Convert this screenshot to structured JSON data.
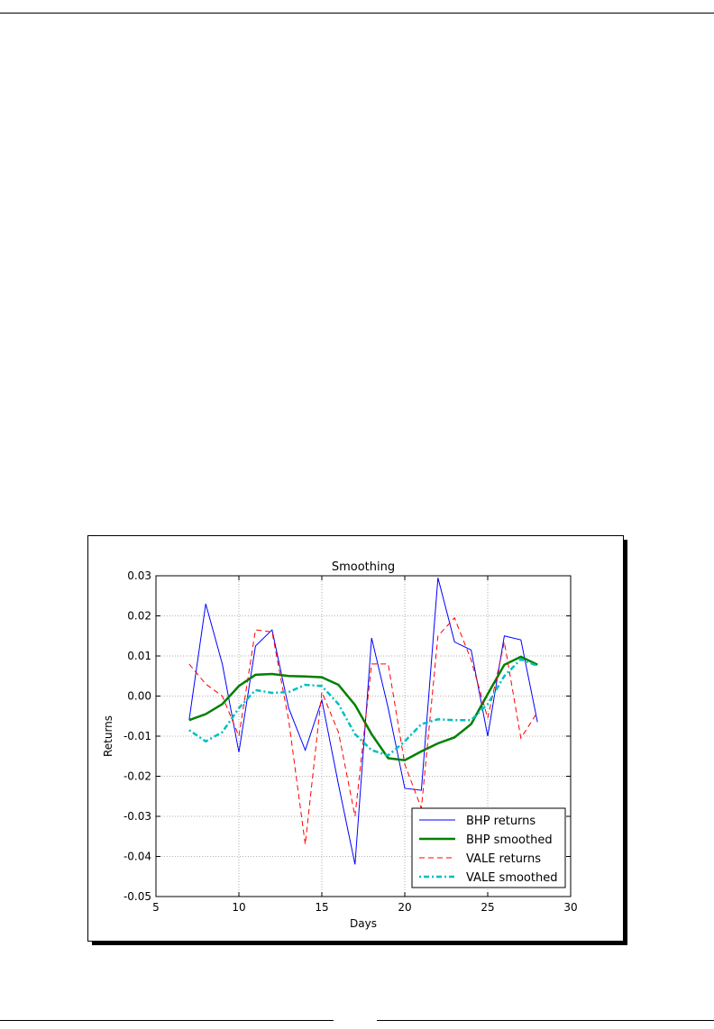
{
  "chart_data": {
    "type": "line",
    "title": "Smoothing",
    "xlabel": "Days",
    "ylabel": "Returns",
    "x": [
      7,
      8,
      9,
      10,
      11,
      12,
      13,
      14,
      15,
      16,
      17,
      18,
      19,
      20,
      21,
      22,
      23,
      24,
      25,
      26,
      27,
      28
    ],
    "series": [
      {
        "name": "BHP returns",
        "color": "#0000ff",
        "style": "solid",
        "width": 1,
        "values": [
          -0.006,
          0.023,
          0.008,
          -0.014,
          0.0125,
          0.0165,
          -0.003,
          -0.0135,
          -0.001,
          -0.022,
          -0.042,
          0.0145,
          -0.003,
          -0.023,
          -0.0235,
          0.0295,
          0.0135,
          0.0115,
          -0.01,
          0.015,
          0.014,
          -0.0065
        ]
      },
      {
        "name": "BHP smoothed",
        "color": "#008000",
        "style": "solid",
        "width": 2.5,
        "values": [
          -0.006,
          -0.0045,
          -0.002,
          0.0025,
          0.0053,
          0.0055,
          0.005,
          0.0049,
          0.0047,
          0.0028,
          -0.0022,
          -0.0095,
          -0.0155,
          -0.016,
          -0.0138,
          -0.0118,
          -0.0103,
          -0.007,
          0.0005,
          0.0078,
          0.0098,
          0.0078
        ]
      },
      {
        "name": "VALE returns",
        "color": "#ff0000",
        "style": "dashed",
        "width": 1,
        "values": [
          0.008,
          0.003,
          0.0,
          -0.01,
          0.0165,
          0.016,
          -0.006,
          -0.037,
          0.001,
          -0.009,
          -0.03,
          0.008,
          0.008,
          -0.017,
          -0.028,
          0.015,
          0.0195,
          0.009,
          -0.0055,
          0.0135,
          -0.0105,
          -0.004
        ]
      },
      {
        "name": "VALE smoothed",
        "color": "#00bfbf",
        "style": "dashdot",
        "width": 2.5,
        "values": [
          -0.0085,
          -0.0113,
          -0.009,
          -0.003,
          0.0015,
          0.0008,
          0.001,
          0.0028,
          0.0025,
          -0.002,
          -0.0095,
          -0.0135,
          -0.0148,
          -0.0113,
          -0.007,
          -0.0058,
          -0.006,
          -0.006,
          -0.002,
          0.005,
          0.0092,
          0.0075
        ]
      }
    ],
    "xlim": [
      5,
      30
    ],
    "xticks": [
      5,
      10,
      15,
      20,
      25,
      30
    ],
    "ylim": [
      -0.05,
      0.03
    ],
    "yticks": [
      -0.05,
      -0.04,
      -0.03,
      -0.02,
      -0.01,
      {
        "value": 0,
        "label": "0.00"
      },
      0.01,
      0.02,
      0.03
    ],
    "grid": true,
    "legend": "lower right"
  }
}
